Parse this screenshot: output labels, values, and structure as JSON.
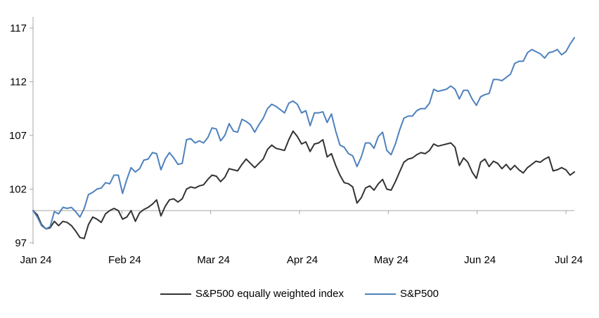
{
  "chart_data": {
    "type": "line",
    "title": "",
    "x_axis": {
      "labels": [
        "Jan 24",
        "Feb 24",
        "Mar 24",
        "Apr 24",
        "May 24",
        "Jun 24",
        "Jul 24"
      ]
    },
    "y_axis": {
      "ticks": [
        97,
        102,
        107,
        112,
        117
      ],
      "range": [
        96.9,
        118.0
      ]
    },
    "reference_line_y": 100,
    "grid": false,
    "legend_position": "bottom",
    "axis_color": "#a6a6a6",
    "text_color": "#000000",
    "series": [
      {
        "name": "S&P500 equally weighted index",
        "color": "#333333",
        "values": [
          100.0,
          99.6,
          98.7,
          98.3,
          98.4,
          99.0,
          98.6,
          99.0,
          98.9,
          98.6,
          98.1,
          97.5,
          97.4,
          98.7,
          99.4,
          99.2,
          98.9,
          99.7,
          100.0,
          100.2,
          100.0,
          99.2,
          99.4,
          100.0,
          99.0,
          99.8,
          100.1,
          100.3,
          100.6,
          101.0,
          99.5,
          100.4,
          101.0,
          101.1,
          100.8,
          101.1,
          102.0,
          102.2,
          102.1,
          102.3,
          102.4,
          102.9,
          103.3,
          103.2,
          102.7,
          103.1,
          103.9,
          103.8,
          103.7,
          104.3,
          104.8,
          104.4,
          104.0,
          104.4,
          104.8,
          105.7,
          106.1,
          105.8,
          105.7,
          105.6,
          106.6,
          107.4,
          106.9,
          106.2,
          106.4,
          105.5,
          106.2,
          106.3,
          106.6,
          105.0,
          105.3,
          104.2,
          103.3,
          102.6,
          102.5,
          102.2,
          100.7,
          101.2,
          102.1,
          102.3,
          101.9,
          102.5,
          102.9,
          102.0,
          101.9,
          102.7,
          103.6,
          104.5,
          104.8,
          104.9,
          105.2,
          105.4,
          105.3,
          105.6,
          106.2,
          106.0,
          106.1,
          106.2,
          106.3,
          105.9,
          104.2,
          104.9,
          104.5,
          103.6,
          103.0,
          104.5,
          104.8,
          104.1,
          104.6,
          104.4,
          103.9,
          104.3,
          103.8,
          104.2,
          103.8,
          103.5,
          104.0,
          104.3,
          104.6,
          104.5,
          104.8,
          105.0,
          103.7,
          103.8,
          104.0,
          103.8,
          103.3,
          103.6
        ]
      },
      {
        "name": "S&P500",
        "color": "#4E81BD",
        "values": [
          100.0,
          99.4,
          98.6,
          98.3,
          98.5,
          99.9,
          99.7,
          100.3,
          100.2,
          100.3,
          99.9,
          99.4,
          100.2,
          101.5,
          101.7,
          102.0,
          102.1,
          102.6,
          102.5,
          103.3,
          103.3,
          101.6,
          102.9,
          104.0,
          103.6,
          103.9,
          104.7,
          104.8,
          105.4,
          105.3,
          103.8,
          104.8,
          105.4,
          104.9,
          104.3,
          104.4,
          106.6,
          106.7,
          106.3,
          106.5,
          106.3,
          106.8,
          107.7,
          107.6,
          106.5,
          107.0,
          108.1,
          107.4,
          107.3,
          108.5,
          108.3,
          108.0,
          107.3,
          108.0,
          108.6,
          109.5,
          109.9,
          109.7,
          109.4,
          109.1,
          110.0,
          110.2,
          109.9,
          109.1,
          109.3,
          107.9,
          109.1,
          109.1,
          109.2,
          108.2,
          109.0,
          107.4,
          106.1,
          105.9,
          105.3,
          105.1,
          104.1,
          105.0,
          106.3,
          106.3,
          105.8,
          106.9,
          107.3,
          105.6,
          105.2,
          106.2,
          107.5,
          108.6,
          108.8,
          108.8,
          109.3,
          109.5,
          109.5,
          110.0,
          111.3,
          111.1,
          111.2,
          111.3,
          111.6,
          111.3,
          110.4,
          111.2,
          111.2,
          110.4,
          109.8,
          110.6,
          110.8,
          110.9,
          112.2,
          112.2,
          112.1,
          112.4,
          112.7,
          113.7,
          113.9,
          113.9,
          114.7,
          115.0,
          114.8,
          114.6,
          114.2,
          114.7,
          114.8,
          115.0,
          114.5,
          114.8,
          115.5,
          116.1
        ]
      }
    ]
  }
}
